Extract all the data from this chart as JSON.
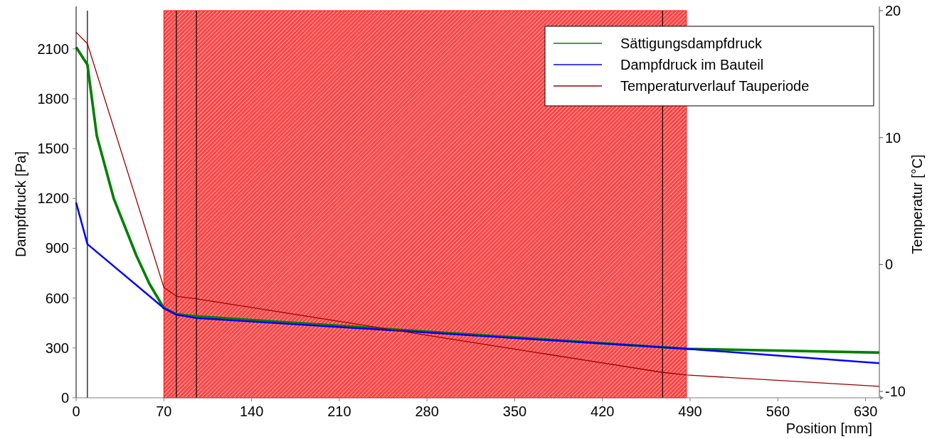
{
  "chart_data": {
    "type": "line",
    "xlabel": "Position [mm]",
    "ylabel": "Dampfdruck [Pa]",
    "y2label": "Temperatur [°C]",
    "xlim": [
      0,
      641
    ],
    "xticks": [
      0,
      70,
      140,
      210,
      280,
      350,
      420,
      490,
      560,
      630
    ],
    "ylim": [
      0,
      2330
    ],
    "yticks": [
      0,
      300,
      600,
      900,
      1200,
      1500,
      1800,
      2100
    ],
    "y2lim": [
      -10.5,
      20
    ],
    "y2ticks": [
      -10,
      0,
      10,
      20
    ],
    "legend": "top right",
    "grid": false,
    "marker": "none",
    "line_style": "solid",
    "series": [
      {
        "name": "Sättigungsdampfdruck",
        "color": "#008000",
        "x": [
          0,
          9,
          16.5,
          30,
          48,
          58.5,
          70,
          80,
          96,
          487,
          641
        ],
        "values": [
          2110,
          2005,
          1577,
          1200,
          857,
          686,
          540,
          503,
          490,
          295,
          272
        ]
      },
      {
        "name": "Dampfdruck im Bauteil",
        "color": "#0000ff",
        "x": [
          0,
          9,
          70,
          80,
          96,
          487,
          641
        ],
        "values": [
          1175,
          925,
          540,
          500,
          480,
          295,
          208
        ]
      },
      {
        "name": "Temperaturverlauf Tauperiode",
        "color": "#990000",
        "axis": "y2",
        "x": [
          0,
          9,
          70,
          80,
          96,
          468,
          487,
          641
        ],
        "values": [
          18.3,
          17.4,
          -1.8,
          -2.5,
          -2.7,
          -8.5,
          -8.7,
          -9.6
        ]
      }
    ],
    "bands": [
      {
        "axis": "x",
        "from": 70,
        "to": 487,
        "color": "#ff0000"
      }
    ],
    "ref_lines": [
      {
        "axis": "x",
        "value": 9,
        "color": "#000000"
      },
      {
        "axis": "x",
        "value": 80,
        "color": "#000000"
      },
      {
        "axis": "x",
        "value": 96,
        "color": "#000000"
      },
      {
        "axis": "x",
        "value": 468,
        "color": "#000000"
      }
    ]
  }
}
